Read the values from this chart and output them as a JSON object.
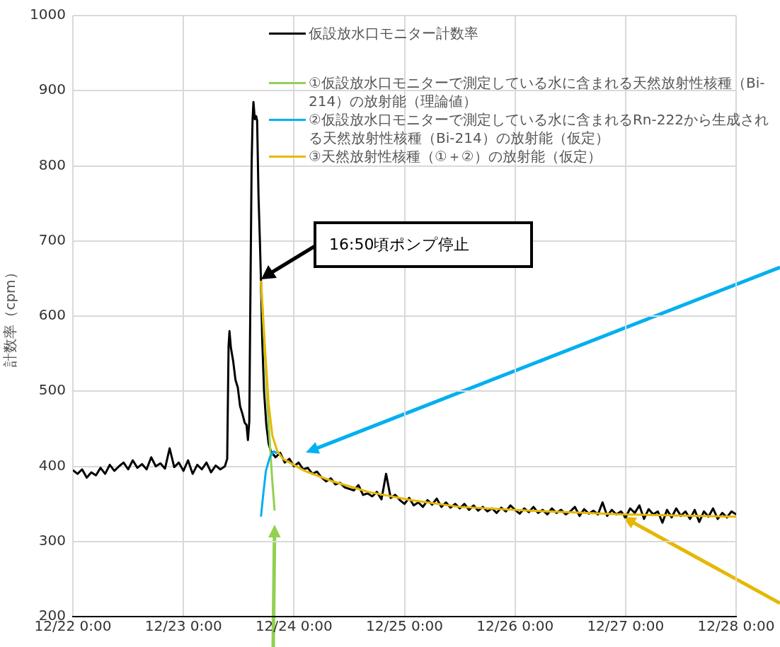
{
  "chart_data": {
    "type": "line",
    "ylabel": "計数率（cpm）",
    "xlim": [
      "--12-22T00:00",
      "--12-28T00:00"
    ],
    "xticks": [
      {
        "value": "--12-22T00:00",
        "label": "12/22 0:00"
      },
      {
        "value": "--12-23T00:00",
        "label": "12/23 0:00"
      },
      {
        "value": "--12-24T00:00",
        "label": "12/24 0:00"
      },
      {
        "value": "--12-25T00:00",
        "label": "12/25 0:00"
      },
      {
        "value": "--12-26T00:00",
        "label": "12/26 0:00"
      },
      {
        "value": "--12-27T00:00",
        "label": "12/27 0:00"
      },
      {
        "value": "--12-28T00:00",
        "label": "12/28 0:00"
      }
    ],
    "ylim": [
      200,
      1000
    ],
    "yticks": [
      200,
      300,
      400,
      500,
      600,
      700,
      800,
      900,
      1000
    ],
    "grid": true,
    "legend": "top right",
    "marker": "none",
    "line_style": "solid",
    "annotations": [
      "16:50頃ポンプ停止"
    ],
    "series": [
      {
        "name": "仮設放水口モニター計数率",
        "color": "#000000",
        "x": [
          "--12-22T00:00",
          "--12-22T01:00",
          "--12-22T02:00",
          "--12-22T03:00",
          "--12-22T04:00",
          "--12-22T05:00",
          "--12-22T06:00",
          "--12-22T07:00",
          "--12-22T08:00",
          "--12-22T09:00",
          "--12-22T10:00",
          "--12-22T11:00",
          "--12-22T12:00",
          "--12-22T13:00",
          "--12-22T14:00",
          "--12-22T15:00",
          "--12-22T16:00",
          "--12-22T17:00",
          "--12-22T18:00",
          "--12-22T19:00",
          "--12-22T20:00",
          "--12-22T21:00",
          "--12-22T22:00",
          "--12-22T23:00",
          "--12-23T00:00",
          "--12-23T01:00",
          "--12-23T02:00",
          "--12-23T03:00",
          "--12-23T04:00",
          "--12-23T05:00",
          "--12-23T06:00",
          "--12-23T07:00",
          "--12-23T08:00",
          "--12-23T09:00",
          "--12-23T09:30",
          "--12-23T09:48",
          "--12-23T10:00",
          "--12-23T10:18",
          "--12-23T10:48",
          "--12-23T11:18",
          "--12-23T11:48",
          "--12-23T12:18",
          "--12-23T12:48",
          "--12-23T13:18",
          "--12-23T13:42",
          "--12-23T14:00",
          "--12-23T14:18",
          "--12-23T14:30",
          "--12-23T14:48",
          "--12-23T15:00",
          "--12-23T15:12",
          "--12-23T15:30",
          "--12-23T15:48",
          "--12-23T16:00",
          "--12-23T16:18",
          "--12-23T16:36",
          "--12-23T16:50",
          "--12-23T17:06",
          "--12-23T17:30",
          "--12-23T18:00",
          "--12-23T18:30",
          "--12-23T19:00",
          "--12-23T20:00",
          "--12-23T21:00",
          "--12-23T22:00",
          "--12-23T23:00",
          "--12-24T00:00",
          "--12-24T01:00",
          "--12-24T02:00",
          "--12-24T03:00",
          "--12-24T04:00",
          "--12-24T05:00",
          "--12-24T06:00",
          "--12-24T07:00",
          "--12-24T08:00",
          "--12-24T09:00",
          "--12-24T10:00",
          "--12-24T11:00",
          "--12-24T12:00",
          "--12-24T13:00",
          "--12-24T14:00",
          "--12-24T15:00",
          "--12-24T16:00",
          "--12-24T17:00",
          "--12-24T18:00",
          "--12-24T19:00",
          "--12-24T20:00",
          "--12-24T21:00",
          "--12-24T22:00",
          "--12-24T23:00",
          "--12-25T00:00",
          "--12-25T01:00",
          "--12-25T02:00",
          "--12-25T03:00",
          "--12-25T04:00",
          "--12-25T05:00",
          "--12-25T06:00",
          "--12-25T07:00",
          "--12-25T08:00",
          "--12-25T09:00",
          "--12-25T10:00",
          "--12-25T11:00",
          "--12-25T12:00",
          "--12-25T13:00",
          "--12-25T14:00",
          "--12-25T15:00",
          "--12-25T16:00",
          "--12-25T17:00",
          "--12-25T18:00",
          "--12-25T19:00",
          "--12-25T20:00",
          "--12-25T21:00",
          "--12-25T22:00",
          "--12-25T23:00",
          "--12-26T00:00",
          "--12-26T01:00",
          "--12-26T02:00",
          "--12-26T03:00",
          "--12-26T04:00",
          "--12-26T05:00",
          "--12-26T06:00",
          "--12-26T07:00",
          "--12-26T08:00",
          "--12-26T09:00",
          "--12-26T10:00",
          "--12-26T11:00",
          "--12-26T12:00",
          "--12-26T13:00",
          "--12-26T14:00",
          "--12-26T15:00",
          "--12-26T16:00",
          "--12-26T17:00",
          "--12-26T18:00",
          "--12-26T19:00",
          "--12-26T20:00",
          "--12-26T21:00",
          "--12-26T22:00",
          "--12-26T23:00",
          "--12-27T00:00",
          "--12-27T01:00",
          "--12-27T02:00",
          "--12-27T03:00",
          "--12-27T04:00",
          "--12-27T05:00",
          "--12-27T06:00",
          "--12-27T07:00",
          "--12-27T08:00",
          "--12-27T09:00",
          "--12-27T10:00",
          "--12-27T11:00",
          "--12-27T12:00",
          "--12-27T13:00",
          "--12-27T14:00",
          "--12-27T15:00",
          "--12-27T16:00",
          "--12-27T17:00",
          "--12-27T18:00",
          "--12-27T19:00",
          "--12-27T20:00",
          "--12-27T21:00",
          "--12-27T22:00",
          "--12-27T23:00",
          "--12-28T00:00"
        ],
        "values": [
          395,
          390,
          396,
          385,
          392,
          388,
          398,
          390,
          402,
          394,
          400,
          405,
          396,
          408,
          398,
          403,
          396,
          412,
          400,
          404,
          397,
          424,
          399,
          405,
          394,
          408,
          390,
          402,
          396,
          405,
          392,
          401,
          396,
          400,
          410,
          560,
          580,
          558,
          540,
          515,
          505,
          480,
          470,
          458,
          455,
          435,
          460,
          600,
          800,
          860,
          885,
          862,
          866,
          860,
          760,
          700,
          647,
          570,
          500,
          455,
          430,
          420,
          412,
          418,
          405,
          410,
          400,
          405,
          396,
          398,
          390,
          393,
          385,
          380,
          384,
          376,
          378,
          372,
          370,
          368,
          375,
          362,
          364,
          360,
          366,
          356,
          390,
          358,
          362,
          355,
          350,
          358,
          348,
          352,
          346,
          355,
          349,
          357,
          346,
          352,
          345,
          350,
          344,
          350,
          342,
          348,
          341,
          346,
          340,
          344,
          338,
          345,
          340,
          348,
          342,
          337,
          344,
          339,
          346,
          338,
          342,
          336,
          344,
          338,
          342,
          336,
          340,
          346,
          334,
          343,
          337,
          341,
          336,
          352,
          334,
          342,
          336,
          340,
          332,
          344,
          338,
          348,
          330,
          343,
          336,
          340,
          325,
          342,
          332,
          344,
          334,
          340,
          330,
          342,
          326,
          340,
          333,
          344,
          330,
          338,
          332,
          340,
          336
        ]
      },
      {
        "name": "①仮設放水口モニターで測定している水に含まれる天然放射性核種（Bi-214）の放射能（理論値）",
        "color": "#92d050",
        "x": [
          "--12-23T16:50",
          "--12-23T17:42",
          "--12-23T18:30",
          "--12-23T19:18",
          "--12-23T19:48"
        ],
        "values": [
          647,
          548,
          455,
          380,
          341
        ]
      },
      {
        "name": "②仮設放水口モニターで測定している水に含まれるRn-222から生成される天然放射性核種（Bi-214）の放射能（仮定）",
        "color": "#00b0f0",
        "x": [
          "--12-23T16:50",
          "--12-23T17:18",
          "--12-23T17:54",
          "--12-23T18:48",
          "--12-23T19:42",
          "--12-23T20:18"
        ],
        "values": [
          333,
          361,
          394,
          413,
          420,
          417
        ]
      },
      {
        "name": "③天然放射性核種（①＋②）の放射能（仮定）",
        "color": "#e6b800",
        "x": [
          "--12-23T16:50",
          "--12-23T17:42",
          "--12-23T18:30",
          "--12-23T19:18",
          "--12-23T20:24",
          "--12-23T21:36",
          "--12-24T02:18",
          "--12-24T08:24",
          "--12-24T16:06",
          "--12-25T01:24",
          "--12-25T12:00",
          "--12-26T03:24",
          "--12-26T23:24",
          "--12-28T00:00"
        ],
        "values": [
          647,
          558,
          483,
          441,
          420,
          410,
          394,
          380,
          366,
          355,
          346,
          341,
          336,
          333
        ]
      }
    ]
  }
}
